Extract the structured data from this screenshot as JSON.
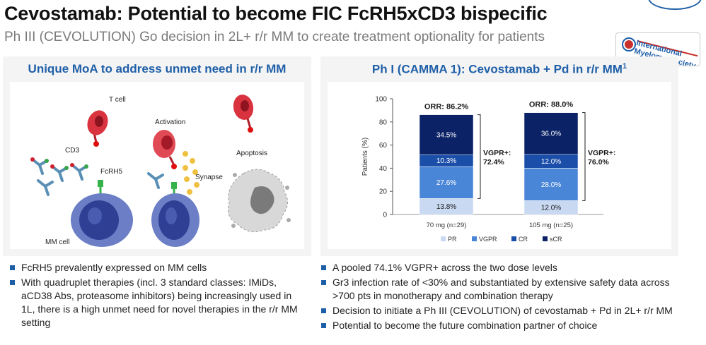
{
  "header": {
    "title": "Cevostamab: Potential to become FIC FcRH5xCD3 bispecific",
    "subtitle": "Ph III (CEVOLUTION) Go decision in 2L+ r/r MM to create treatment optionality for patients"
  },
  "badge": {
    "line1": "International",
    "line2": "Myeloma Society"
  },
  "left_panel": {
    "title": "Unique MoA to address unmet need in r/r MM",
    "labels": {
      "t_cell": "T cell",
      "activation": "Activation",
      "cd3": "CD3",
      "fcrh5": "FcRH5",
      "synapse": "Synapse",
      "apoptosis": "Apoptosis",
      "mm_cell": "MM cell"
    }
  },
  "right_panel": {
    "title": "Ph I (CAMMA 1): Cevostamab + Pd in r/r MM",
    "title_sup": "1"
  },
  "colors": {
    "PR": "#c9d9f2",
    "VGPR": "#4a86d8",
    "CR": "#1a4ea8",
    "sCR": "#0b2266",
    "accent": "#1f5fa8"
  },
  "chart_data": {
    "type": "bar",
    "stacked": true,
    "categories": [
      "70 mg (n=29)",
      "105 mg (n=25)"
    ],
    "series": [
      {
        "name": "PR",
        "values": [
          13.8,
          12.0
        ]
      },
      {
        "name": "VGPR",
        "values": [
          27.6,
          28.0
        ]
      },
      {
        "name": "CR",
        "values": [
          10.3,
          12.0
        ]
      },
      {
        "name": "sCR",
        "values": [
          34.5,
          36.0
        ]
      }
    ],
    "value_labels": [
      [
        "13.8%",
        "27.6%",
        "10.3%",
        "34.5%"
      ],
      [
        "12.0%",
        "28.0%",
        "12.0%",
        "36.0%"
      ]
    ],
    "orr_labels": [
      "ORR: 86.2%",
      "ORR: 88.0%"
    ],
    "vgpr_plus_labels": [
      [
        "VGPR+:",
        "72.4%"
      ],
      [
        "VGPR+:",
        "76.0%"
      ]
    ],
    "vgpr_plus_values": [
      72.4,
      76.0
    ],
    "ylabel": "Patients (%)",
    "ylim": [
      0,
      100
    ],
    "yticks": [
      "0",
      "20",
      "40",
      "60",
      "80",
      "100"
    ],
    "ytick_values": [
      0,
      20,
      40,
      60,
      80,
      100
    ],
    "grid": false,
    "legend": "bottom"
  },
  "bullets_left": [
    "FcRH5 prevalently expressed on MM cells",
    "With quadruplet therapies (incl. 3 standard classes: IMiDs, aCD38 Abs, proteasome inhibitors) being increasingly used in 1L, there is a high unmet need for novel therapies in the r/r MM setting"
  ],
  "bullets_right": [
    "A pooled 74.1% VGPR+ across the two dose levels",
    "Gr3 infection rate of <30% and substantiated by extensive safety data across >700 pts in monotherapy and combination therapy",
    "Decision to initiate a Ph III (CEVOLUTION) of cevostamab + Pd in 2L+ r/r MM",
    "Potential to become the future combination partner of choice"
  ]
}
